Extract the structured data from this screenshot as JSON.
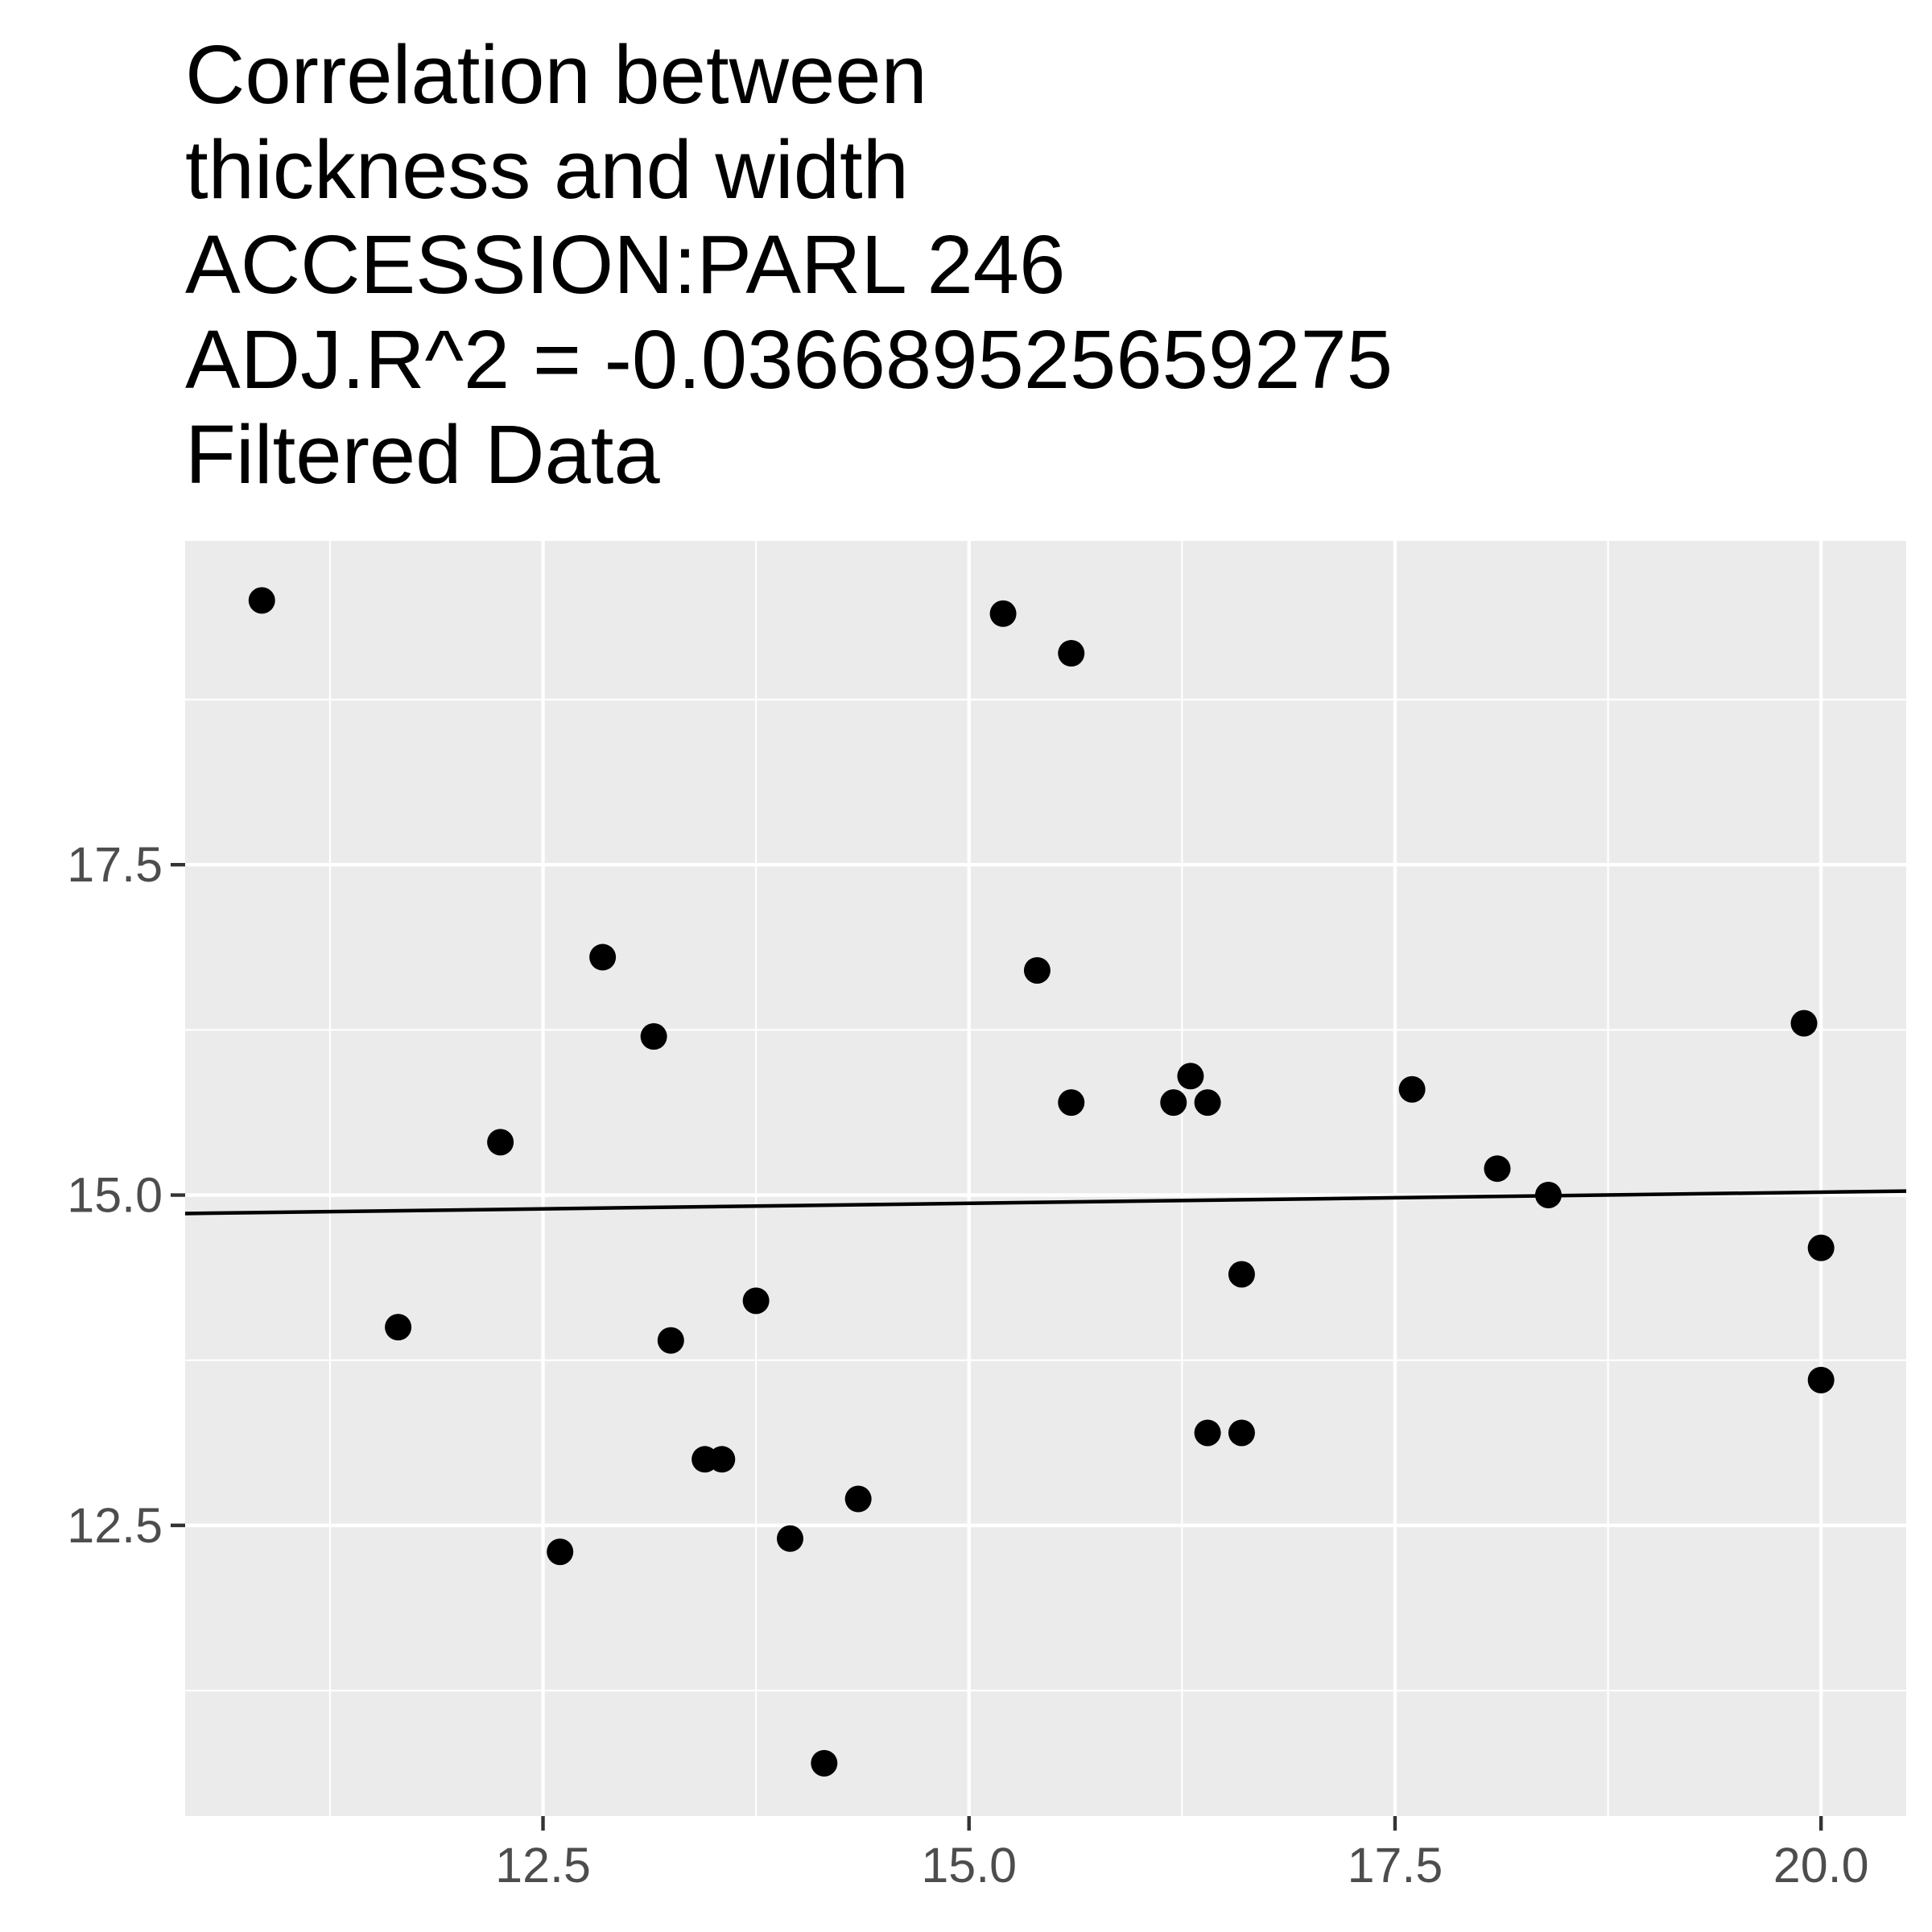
{
  "chart_data": {
    "type": "scatter",
    "title_lines": [
      "Correlation between",
      "thickness and width",
      "ACCESSION:PARL 246",
      "ADJ.R^2 = -0.036689525659275",
      "Filtered Data"
    ],
    "xlabel": "",
    "ylabel": "",
    "xlim": [
      10.4,
      20.5
    ],
    "ylim": [
      10.3,
      19.95
    ],
    "x_ticks": [
      12.5,
      15.0,
      17.5,
      20.0
    ],
    "x_tick_labels": [
      "12.5",
      "15.0",
      "17.5",
      "20.0"
    ],
    "y_ticks": [
      12.5,
      15.0,
      17.5
    ],
    "y_tick_labels": [
      "12.5",
      "15.0",
      "17.5"
    ],
    "x_minor_grid": [
      11.25,
      13.75,
      16.25,
      18.75
    ],
    "y_minor_grid": [
      11.25,
      13.75,
      16.25,
      18.75
    ],
    "grid": true,
    "legend": "none",
    "points": [
      {
        "x": 10.85,
        "y": 19.5
      },
      {
        "x": 11.65,
        "y": 14.0
      },
      {
        "x": 12.25,
        "y": 15.4
      },
      {
        "x": 12.6,
        "y": 12.3
      },
      {
        "x": 12.85,
        "y": 16.8
      },
      {
        "x": 13.15,
        "y": 16.2
      },
      {
        "x": 13.25,
        "y": 13.9
      },
      {
        "x": 13.45,
        "y": 13.0
      },
      {
        "x": 13.55,
        "y": 13.0
      },
      {
        "x": 13.75,
        "y": 14.2
      },
      {
        "x": 13.95,
        "y": 12.4
      },
      {
        "x": 14.15,
        "y": 10.7
      },
      {
        "x": 14.35,
        "y": 12.7
      },
      {
        "x": 15.2,
        "y": 19.4
      },
      {
        "x": 15.4,
        "y": 16.7
      },
      {
        "x": 15.6,
        "y": 19.1
      },
      {
        "x": 15.6,
        "y": 15.7
      },
      {
        "x": 16.2,
        "y": 15.7
      },
      {
        "x": 16.3,
        "y": 15.9
      },
      {
        "x": 16.4,
        "y": 15.7
      },
      {
        "x": 16.4,
        "y": 13.2
      },
      {
        "x": 16.6,
        "y": 14.4
      },
      {
        "x": 16.6,
        "y": 13.2
      },
      {
        "x": 17.6,
        "y": 15.8
      },
      {
        "x": 18.1,
        "y": 15.2
      },
      {
        "x": 18.4,
        "y": 15.0
      },
      {
        "x": 19.9,
        "y": 16.3
      },
      {
        "x": 20.0,
        "y": 14.6
      },
      {
        "x": 20.0,
        "y": 13.6
      }
    ],
    "fit_line": {
      "x1": 10.4,
      "y1": 14.86,
      "x2": 20.5,
      "y2": 15.03
    },
    "colors": {
      "panel_background": "#ebebeb",
      "grid": "#ffffff",
      "points": "#000000",
      "fit_line": "#000000",
      "tick_text": "#4d4d4d",
      "tick_marks": "#333333"
    }
  }
}
